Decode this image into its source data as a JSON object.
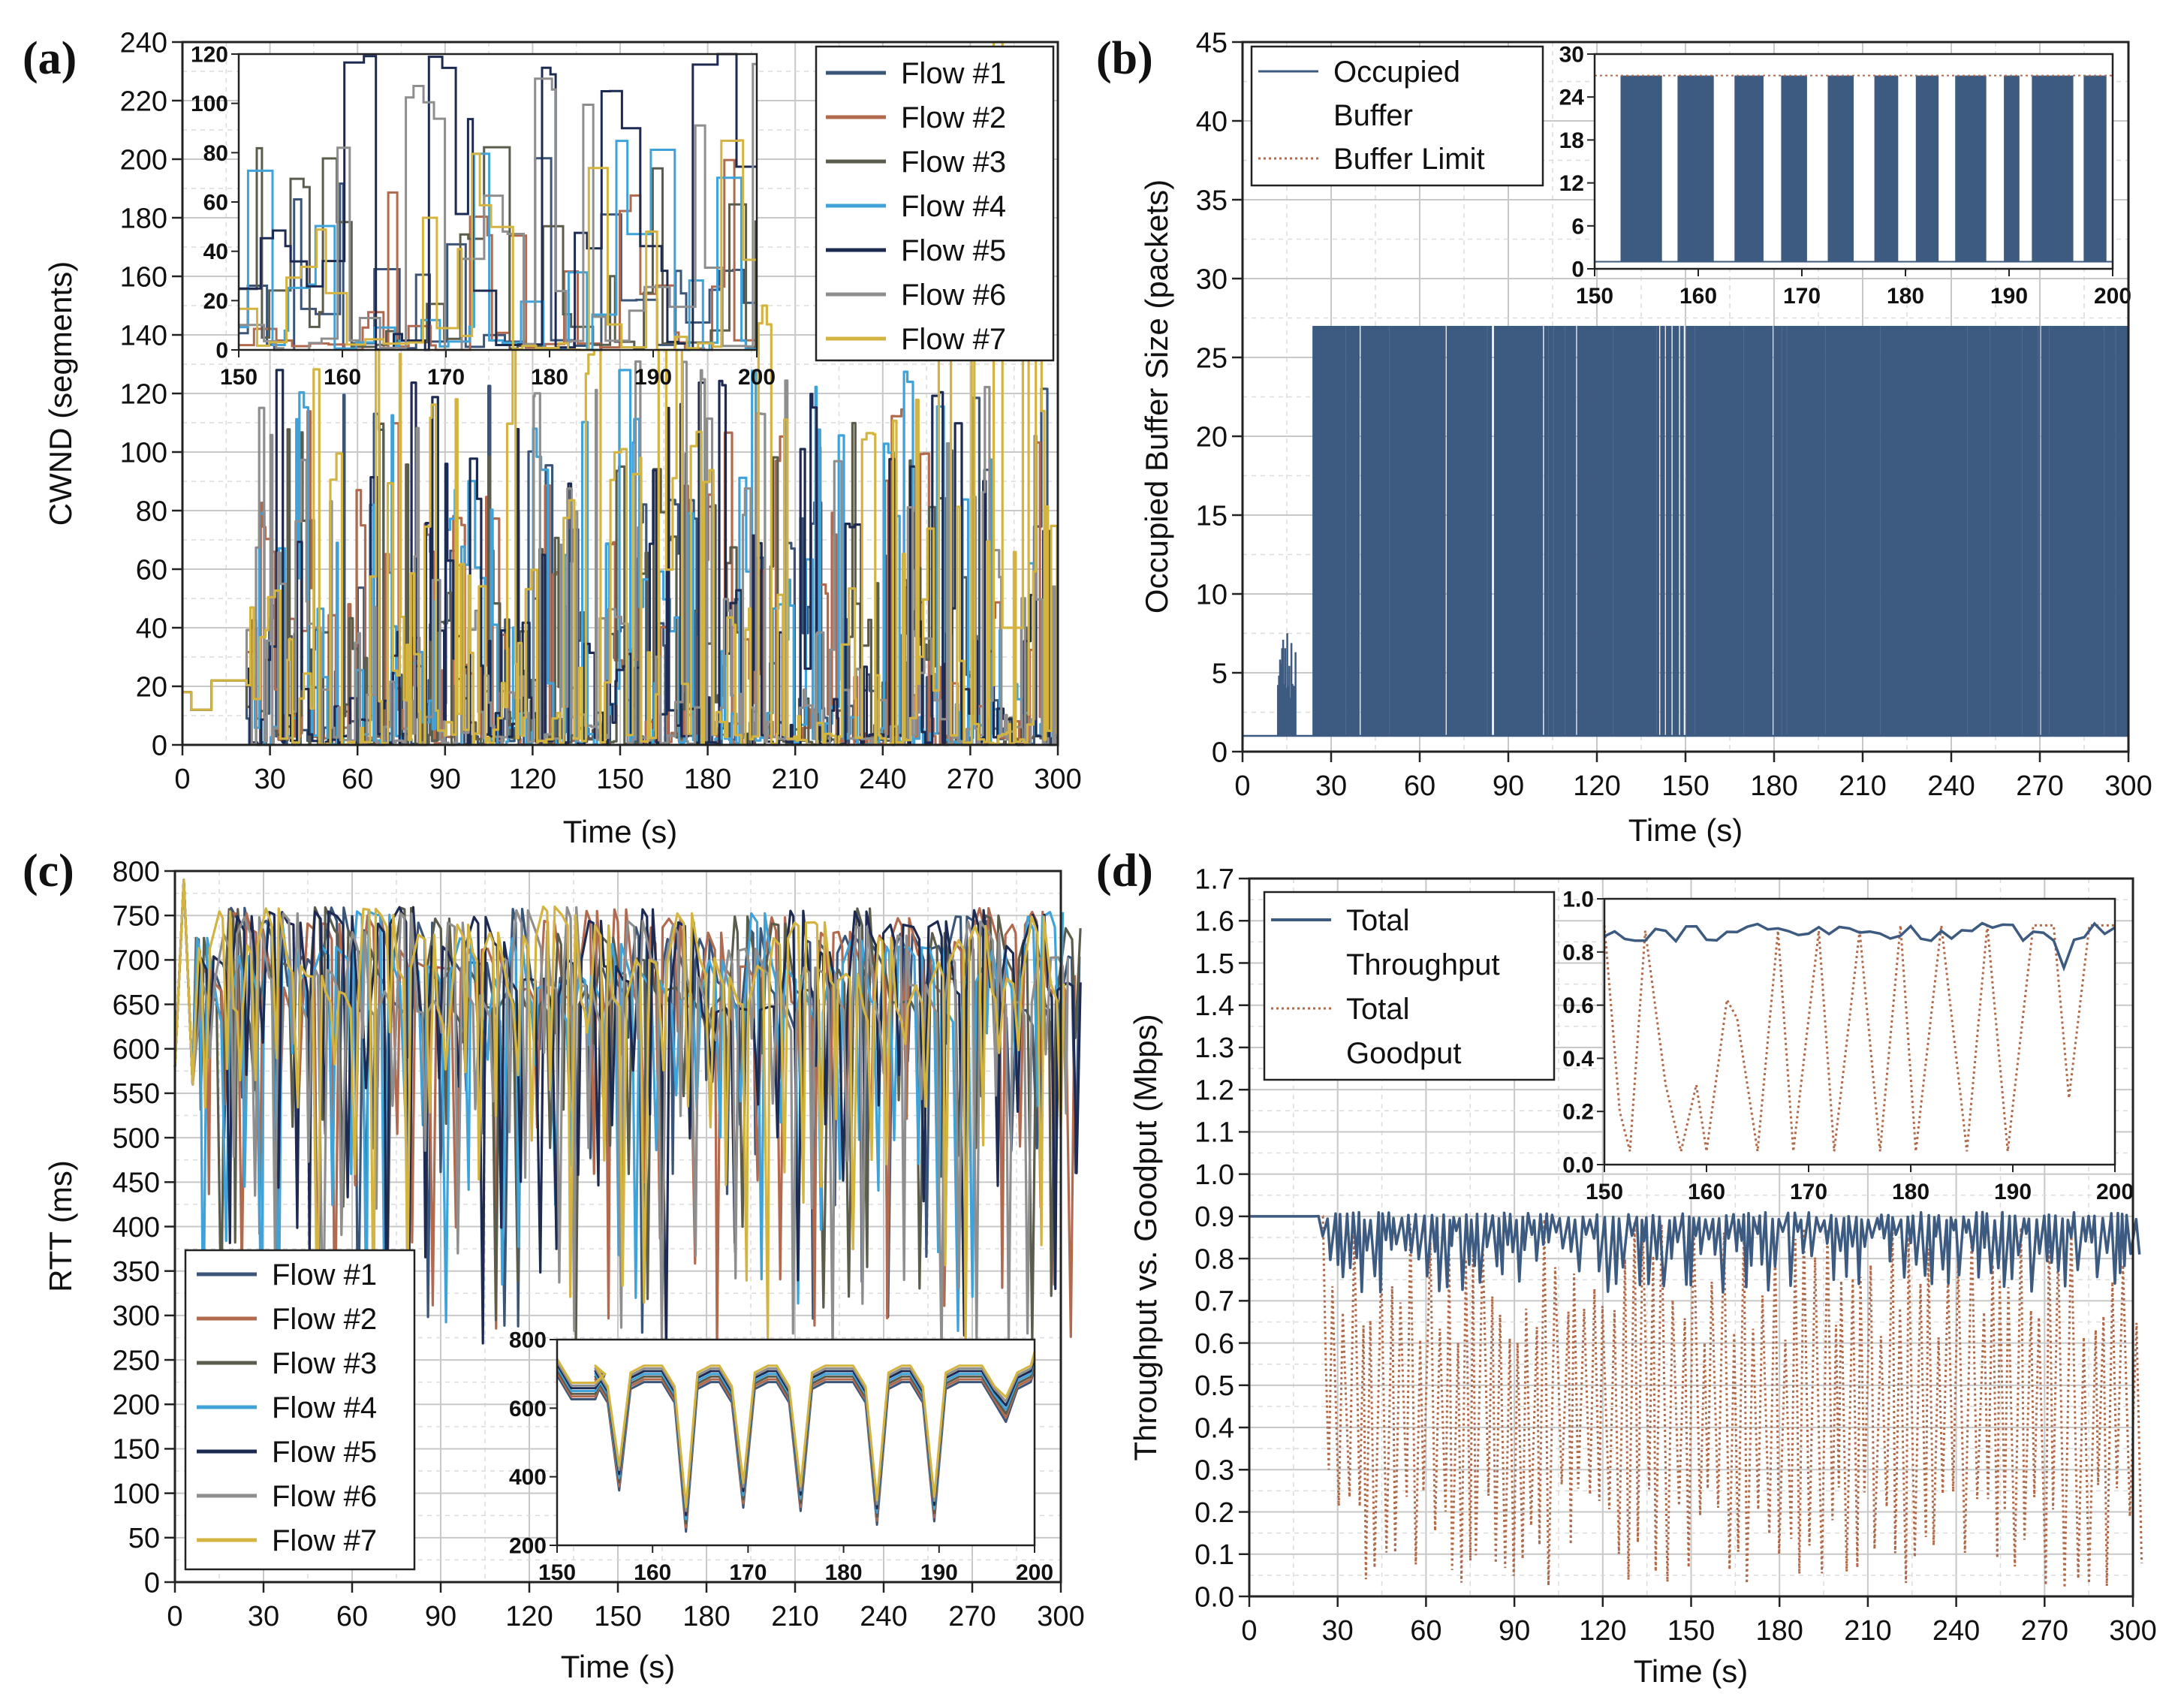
{
  "figure": {
    "panels": [
      "(a)",
      "(b)",
      "(c)",
      "(d)"
    ]
  },
  "colors": {
    "flow1": "#3b5578",
    "flow2": "#b26a4f",
    "flow3": "#5c5c4c",
    "flow4": "#3fa2d8",
    "flow5": "#1d2b52",
    "flow6": "#8e8e8e",
    "flow7": "#d4b440",
    "buffer": "#3d5a80",
    "limit": "#b26a4f",
    "throughput": "#3d5a80",
    "goodput": "#b06a4a"
  },
  "chart_data": [
    {
      "id": "a",
      "type": "line",
      "xlabel": "Time (s)",
      "ylabel": "CWND (segments)",
      "xlim": [
        0,
        300
      ],
      "ylim": [
        0,
        240
      ],
      "xticks": [
        "0",
        "30",
        "60",
        "90",
        "120",
        "150",
        "180",
        "210",
        "240",
        "270",
        "300"
      ],
      "yticks": [
        "0",
        "20",
        "40",
        "60",
        "80",
        "100",
        "120",
        "140",
        "160",
        "180",
        "200",
        "220",
        "240"
      ],
      "legend_position": "top-right",
      "series": [
        {
          "name": "Flow #1",
          "values_summary": "step-like CWND, 0–130 segments"
        },
        {
          "name": "Flow #2",
          "values_summary": "step-like CWND, 0–118 segments"
        },
        {
          "name": "Flow #3",
          "values_summary": "step-like CWND, 0–110 segments"
        },
        {
          "name": "Flow #4",
          "values_summary": "step-like CWND, 0–128 segments"
        },
        {
          "name": "Flow #5",
          "values_summary": "step-like CWND, 0–132 segments"
        },
        {
          "name": "Flow #6",
          "values_summary": "step-like CWND, 0–135 segments"
        },
        {
          "name": "Flow #7",
          "values_summary": "step-like CWND, 0–240 segments"
        }
      ],
      "inset": {
        "xlim": [
          150,
          200
        ],
        "ylim": [
          0,
          120
        ],
        "xticks": [
          "150",
          "160",
          "170",
          "180",
          "190",
          "200"
        ],
        "yticks": [
          "0",
          "20",
          "40",
          "60",
          "80",
          "100",
          "120"
        ]
      }
    },
    {
      "id": "b",
      "type": "line",
      "xlabel": "Time (s)",
      "ylabel": "Occupied Buffer Size (packets)",
      "xlim": [
        0,
        300
      ],
      "ylim": [
        0,
        45
      ],
      "xticks": [
        "0",
        "30",
        "60",
        "90",
        "120",
        "150",
        "180",
        "210",
        "240",
        "270",
        "300"
      ],
      "yticks": [
        "0",
        "5",
        "10",
        "15",
        "20",
        "25",
        "30",
        "35",
        "40",
        "45"
      ],
      "legend_position": "top-left",
      "legend": [
        "Occupied Buffer",
        "Buffer Limit"
      ],
      "legend_lines": [
        [
          "Occupied",
          "Buffer"
        ],
        [
          "Buffer Limit"
        ]
      ],
      "series": [
        {
          "name": "Occupied Buffer",
          "values_summary": "oscillates 1–27 packets from t≈24 s; small 1–8 bursts at 12–18 s"
        },
        {
          "name": "Buffer Limit",
          "values_summary": "dotted limit line"
        }
      ],
      "inset": {
        "xlim": [
          150,
          200
        ],
        "ylim": [
          0,
          30
        ],
        "xticks": [
          "150",
          "160",
          "170",
          "180",
          "190",
          "200"
        ],
        "yticks": [
          "0",
          "6",
          "12",
          "18",
          "24",
          "30"
        ]
      }
    },
    {
      "id": "c",
      "type": "line",
      "xlabel": "Time (s)",
      "ylabel": "RTT (ms)",
      "xlim": [
        0,
        300
      ],
      "ylim": [
        0,
        800
      ],
      "xticks": [
        "0",
        "30",
        "60",
        "90",
        "120",
        "150",
        "180",
        "210",
        "240",
        "270",
        "300"
      ],
      "yticks": [
        "0",
        "50",
        "100",
        "150",
        "200",
        "250",
        "300",
        "350",
        "400",
        "450",
        "500",
        "550",
        "600",
        "650",
        "700",
        "750",
        "800"
      ],
      "legend_position": "bottom-left",
      "series": [
        {
          "name": "Flow #1",
          "values_summary": "RTT 250–790 ms"
        },
        {
          "name": "Flow #2",
          "values_summary": "RTT 250–790 ms"
        },
        {
          "name": "Flow #3",
          "values_summary": "RTT 250–790 ms"
        },
        {
          "name": "Flow #4",
          "values_summary": "RTT 250–790 ms"
        },
        {
          "name": "Flow #5",
          "values_summary": "RTT 250–790 ms"
        },
        {
          "name": "Flow #6",
          "values_summary": "RTT 250–790 ms"
        },
        {
          "name": "Flow #7",
          "values_summary": "RTT 250–790 ms"
        }
      ],
      "inset": {
        "xlim": [
          150,
          200
        ],
        "ylim": [
          200,
          800
        ],
        "xticks": [
          "150",
          "160",
          "170",
          "180",
          "190",
          "200"
        ],
        "yticks": [
          "200",
          "400",
          "600",
          "800"
        ]
      }
    },
    {
      "id": "d",
      "type": "line",
      "xlabel": "Time (s)",
      "ylabel": "Throughput vs. Goodput (Mbps)",
      "xlim": [
        0,
        300
      ],
      "ylim": [
        0.0,
        1.7
      ],
      "xticks": [
        "0",
        "30",
        "60",
        "90",
        "120",
        "150",
        "180",
        "210",
        "240",
        "270",
        "300"
      ],
      "yticks": [
        "0.0",
        "0.1",
        "0.2",
        "0.3",
        "0.4",
        "0.5",
        "0.6",
        "0.7",
        "0.8",
        "0.9",
        "1.0",
        "1.1",
        "1.2",
        "1.3",
        "1.4",
        "1.5",
        "1.6",
        "1.7"
      ],
      "legend_position": "top-left",
      "legend": [
        "Total Throughput",
        "Total Goodput"
      ],
      "legend_lines": [
        [
          "Total",
          "Throughput"
        ],
        [
          "Total",
          "Goodput"
        ]
      ],
      "series": [
        {
          "name": "Total Throughput",
          "values_summary": "≈0.9 Mbps with dips to 0.7"
        },
        {
          "name": "Total Goodput",
          "values_summary": "≈0.9 Mbps until t≈25 s, then oscillates 0.02–0.9"
        }
      ],
      "inset": {
        "xlim": [
          150,
          200
        ],
        "ylim": [
          0.0,
          1.0
        ],
        "xticks": [
          "150",
          "160",
          "170",
          "180",
          "190",
          "200"
        ],
        "yticks": [
          "0.0",
          "0.2",
          "0.4",
          "0.6",
          "0.8",
          "1.0"
        ]
      }
    }
  ]
}
